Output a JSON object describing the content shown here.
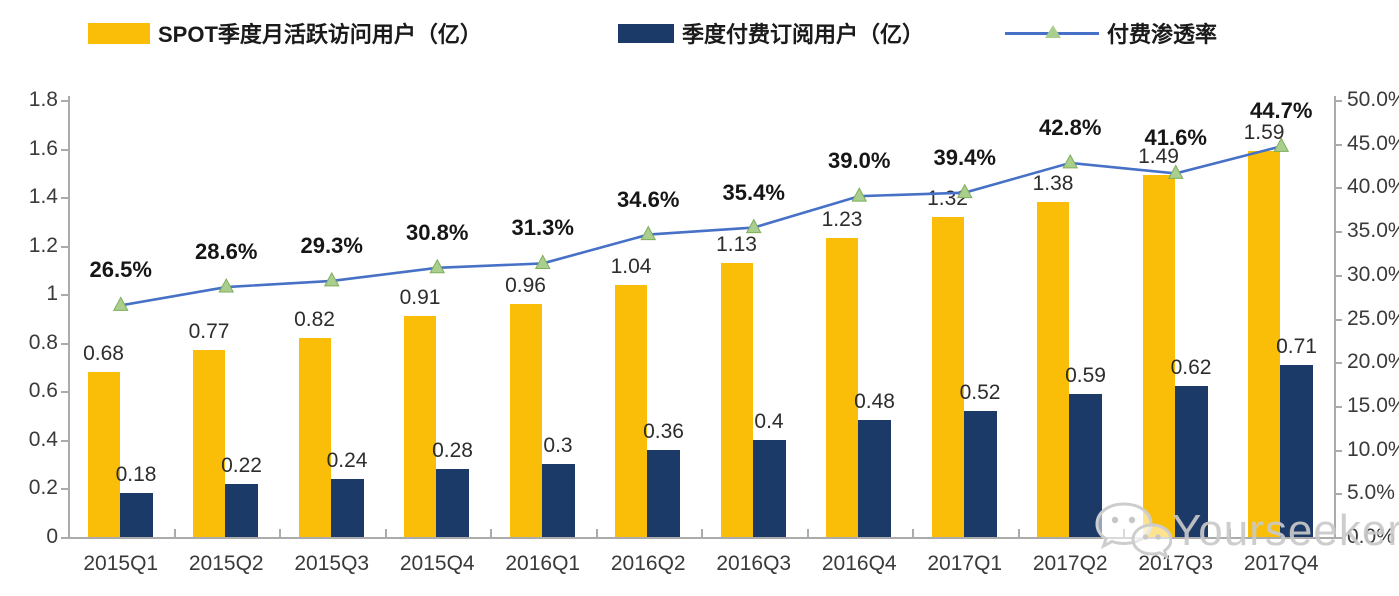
{
  "legend": {
    "mau_label": "SPOT季度月活跃访问用户（亿）",
    "subs_label": "季度付费订阅用户（亿）",
    "penetration_label": "付费渗透率"
  },
  "watermark": {
    "text": "Yourseeker",
    "icon": "wechat-icon"
  },
  "colors": {
    "bar_mau": "#FBBE08",
    "bar_subs": "#1C3A68",
    "line": "#4671C6",
    "marker": "#A9CE8E",
    "marker_edge": "#7FAE5B",
    "axis": "#ABABAB",
    "text": "#3a3a3a",
    "watermark": "#c9c9c9"
  },
  "chart_data": {
    "type": "combo",
    "categories": [
      "2015Q1",
      "2015Q2",
      "2015Q3",
      "2015Q4",
      "2016Q1",
      "2016Q2",
      "2016Q3",
      "2016Q4",
      "2017Q1",
      "2017Q2",
      "2017Q3",
      "2017Q4"
    ],
    "series": [
      {
        "name": "SPOT季度月活跃访问用户（亿）",
        "type": "bar",
        "axis": "left",
        "color": "#FBBE08",
        "values": [
          0.68,
          0.77,
          0.82,
          0.91,
          0.96,
          1.04,
          1.13,
          1.23,
          1.32,
          1.38,
          1.49,
          1.59
        ],
        "labels": [
          "0.68",
          "0.77",
          "0.82",
          "0.91",
          "0.96",
          "1.04",
          "1.13",
          "1.23",
          "1.32",
          "1.38",
          "1.49",
          "1.59"
        ]
      },
      {
        "name": "季度付费订阅用户（亿）",
        "type": "bar",
        "axis": "left",
        "color": "#1C3A68",
        "values": [
          0.18,
          0.22,
          0.24,
          0.28,
          0.3,
          0.36,
          0.4,
          0.48,
          0.52,
          0.59,
          0.62,
          0.71
        ],
        "labels": [
          "0.18",
          "0.22",
          "0.24",
          "0.28",
          "0.3",
          "0.36",
          "0.4",
          "0.48",
          "0.52",
          "0.59",
          "0.62",
          "0.71"
        ]
      },
      {
        "name": "付费渗透率",
        "type": "line",
        "axis": "right",
        "color": "#4671C6",
        "marker": "triangle",
        "marker_color": "#A9CE8E",
        "values": [
          26.5,
          28.6,
          29.3,
          30.8,
          31.3,
          34.6,
          35.4,
          39.0,
          39.4,
          42.8,
          41.6,
          44.7
        ],
        "labels": [
          "26.5%",
          "28.6%",
          "29.3%",
          "30.8%",
          "31.3%",
          "34.6%",
          "35.4%",
          "39.0%",
          "39.4%",
          "42.8%",
          "41.6%",
          "44.7%"
        ]
      }
    ],
    "left_axis": {
      "min": 0,
      "max": 1.8,
      "tick_labels": [
        "0",
        "0.2",
        "0.4",
        "0.6",
        "0.8",
        "1",
        "1.2",
        "1.4",
        "1.6",
        "1.8"
      ]
    },
    "right_axis": {
      "min": 0,
      "max": 50,
      "tick_labels": [
        "0.0%",
        "5.0%",
        "10.0%",
        "15.0%",
        "20.0%",
        "25.0%",
        "30.0%",
        "35.0%",
        "40.0%",
        "45.0%",
        "50.0%"
      ]
    },
    "grid": false,
    "legend_position": "top"
  }
}
